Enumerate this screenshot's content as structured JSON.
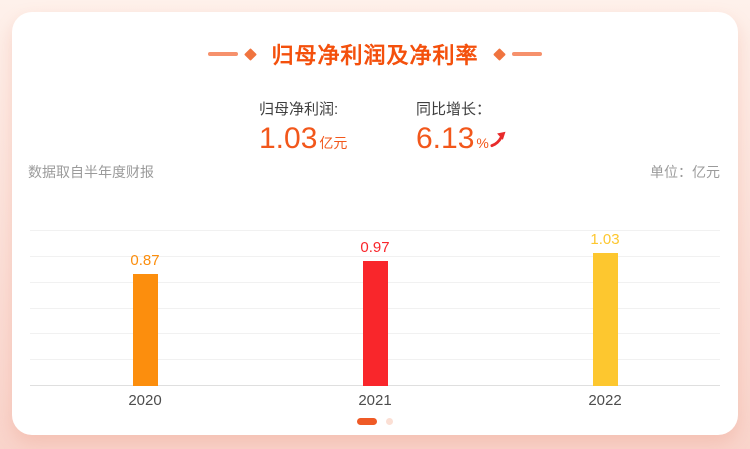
{
  "header": {
    "title": "归母净利润及净利率"
  },
  "stats": [
    {
      "label": "归母净利润:",
      "value": "1.03",
      "unit": "亿元"
    },
    {
      "label": "同比增长：",
      "value": "6.13",
      "unit": "%",
      "trend_icon": "trend-up-arrow"
    }
  ],
  "meta": {
    "source_note": "数据取自半年度财报",
    "unit_note": "单位：亿元"
  },
  "chart_data": {
    "type": "bar",
    "title": "归母净利润及净利率",
    "categories": [
      "2020",
      "2021",
      "2022"
    ],
    "values": [
      0.87,
      0.97,
      1.03
    ],
    "value_labels": [
      "0.87",
      "0.97",
      "1.03"
    ],
    "bar_colors": [
      "#FC8E0D",
      "#F9262B",
      "#FDC72F"
    ],
    "xlabel": "",
    "ylabel": "亿元",
    "ylim": [
      0,
      1.2
    ],
    "grid_step": 0.2,
    "grid": true,
    "y_tick_labels_visible": false,
    "legend": "none"
  },
  "pagination": {
    "count": 2,
    "active_index": 0
  },
  "theme": {
    "bg_top": "#FEF1EB",
    "bg_bottom": "#F9D4CB",
    "card_bg": "#FFFFFF",
    "accent": "#F4500C",
    "deco_line": "#F6916C",
    "deco_diamond": "#F0743F",
    "stat_value": "#F2571B",
    "trend_arrow": "#E82A2A",
    "text_dark": "#3F3F3F",
    "text_gray": "#9B9B9B",
    "axis_label": "#4D4D4D",
    "grid": "#F1F1F1",
    "baseline": "#DFDFDF",
    "pager_active": "#EF5A26",
    "pager_inactive": "#FBDFD4"
  }
}
